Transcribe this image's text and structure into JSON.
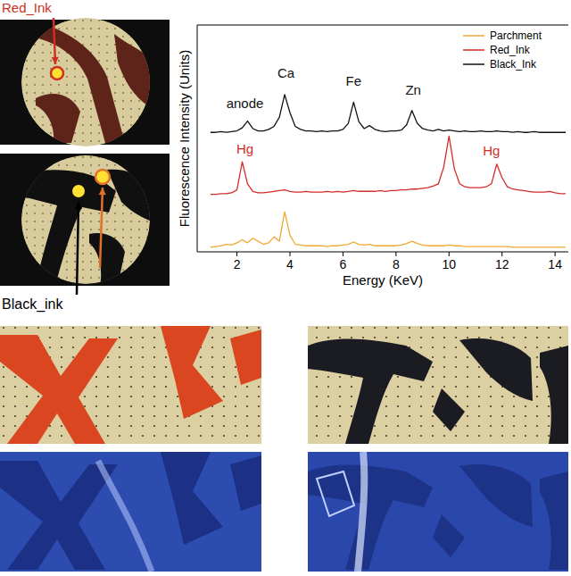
{
  "chart_data": {
    "type": "line",
    "x_label": "Energy (KeV)",
    "y_label": "Fluorescence Intensity (Units)",
    "x": [
      1.0,
      1.2,
      1.4,
      1.6,
      1.8,
      2.0,
      2.2,
      2.4,
      2.6,
      2.8,
      3.0,
      3.2,
      3.4,
      3.6,
      3.8,
      4.0,
      4.2,
      4.4,
      4.6,
      4.8,
      5.0,
      5.2,
      5.4,
      5.6,
      5.8,
      6.0,
      6.2,
      6.4,
      6.6,
      6.8,
      7.0,
      7.2,
      7.4,
      7.6,
      7.8,
      8.0,
      8.2,
      8.4,
      8.6,
      8.8,
      9.0,
      9.2,
      9.4,
      9.6,
      9.8,
      10.0,
      10.2,
      10.4,
      10.6,
      10.8,
      11.0,
      11.2,
      11.4,
      11.6,
      11.8,
      12.0,
      12.2,
      12.4,
      12.6,
      12.8,
      13.0,
      13.2,
      13.4,
      13.6,
      13.8,
      14.0,
      14.2,
      14.4
    ],
    "series": [
      {
        "name": "Parchment",
        "color": "#f0a830",
        "values": [
          0.06,
          0.07,
          0.08,
          0.1,
          0.09,
          0.12,
          0.16,
          0.12,
          0.18,
          0.14,
          0.1,
          0.12,
          0.2,
          0.14,
          0.53,
          0.22,
          0.1,
          0.09,
          0.08,
          0.08,
          0.08,
          0.08,
          0.07,
          0.08,
          0.08,
          0.09,
          0.1,
          0.13,
          0.1,
          0.09,
          0.1,
          0.08,
          0.08,
          0.08,
          0.08,
          0.08,
          0.09,
          0.11,
          0.14,
          0.11,
          0.09,
          0.08,
          0.08,
          0.08,
          0.08,
          0.09,
          0.08,
          0.08,
          0.07,
          0.07,
          0.07,
          0.07,
          0.07,
          0.07,
          0.07,
          0.07,
          0.07,
          0.06,
          0.06,
          0.06,
          0.06,
          0.06,
          0.06,
          0.06,
          0.06,
          0.06,
          0.06,
          0.06
        ]
      },
      {
        "name": "Red_Ink",
        "color": "#d62b2b",
        "values": [
          0.76,
          0.76,
          0.77,
          0.77,
          0.78,
          0.82,
          1.19,
          0.9,
          0.8,
          0.78,
          0.78,
          0.79,
          0.8,
          0.81,
          0.82,
          0.8,
          0.79,
          0.79,
          0.8,
          0.79,
          0.79,
          0.79,
          0.8,
          0.79,
          0.8,
          0.79,
          0.8,
          0.81,
          0.8,
          0.8,
          0.8,
          0.8,
          0.81,
          0.8,
          0.81,
          0.81,
          0.82,
          0.82,
          0.83,
          0.83,
          0.84,
          0.85,
          0.87,
          0.9,
          1.12,
          1.53,
          1.1,
          0.9,
          0.86,
          0.85,
          0.85,
          0.85,
          0.86,
          0.9,
          1.16,
          0.98,
          0.86,
          0.83,
          0.82,
          0.81,
          0.8,
          0.79,
          0.79,
          0.79,
          0.8,
          0.78,
          0.77,
          0.77
        ]
      },
      {
        "name": "Black_Ink",
        "color": "#111111",
        "values": [
          1.58,
          1.58,
          1.59,
          1.58,
          1.59,
          1.6,
          1.64,
          1.73,
          1.63,
          1.6,
          1.6,
          1.62,
          1.66,
          1.78,
          2.08,
          1.84,
          1.66,
          1.62,
          1.6,
          1.6,
          1.59,
          1.6,
          1.59,
          1.6,
          1.6,
          1.62,
          1.7,
          1.98,
          1.72,
          1.63,
          1.67,
          1.62,
          1.6,
          1.59,
          1.6,
          1.6,
          1.61,
          1.68,
          1.87,
          1.7,
          1.63,
          1.61,
          1.6,
          1.62,
          1.6,
          1.61,
          1.6,
          1.59,
          1.6,
          1.59,
          1.59,
          1.6,
          1.59,
          1.59,
          1.6,
          1.59,
          1.59,
          1.58,
          1.59,
          1.58,
          1.58,
          1.59,
          1.58,
          1.58,
          1.58,
          1.58,
          1.58,
          1.58
        ]
      }
    ],
    "xlim": [
      0.5,
      14.5
    ],
    "xticks": [
      2,
      4,
      6,
      8,
      10,
      12,
      14
    ],
    "ylim": [
      0,
      3
    ],
    "tick_labels": "x",
    "legend": "upper right",
    "annotations": [
      {
        "text": "anode",
        "x": 2.3,
        "y": 1.9,
        "color": "#111111"
      },
      {
        "text": "Ca",
        "x": 3.85,
        "y": 2.3,
        "color": "#111111"
      },
      {
        "text": "Fe",
        "x": 6.4,
        "y": 2.2,
        "color": "#111111"
      },
      {
        "text": "Zn",
        "x": 8.65,
        "y": 2.08,
        "color": "#111111"
      },
      {
        "text": "Hg",
        "x": 2.3,
        "y": 1.3,
        "color": "#d62b2b"
      },
      {
        "text": "Hg",
        "x": 11.6,
        "y": 1.28,
        "color": "#d62b2b"
      }
    ]
  },
  "photos": {
    "red_label": "Red_Ink",
    "black_label": "Black_ink"
  }
}
